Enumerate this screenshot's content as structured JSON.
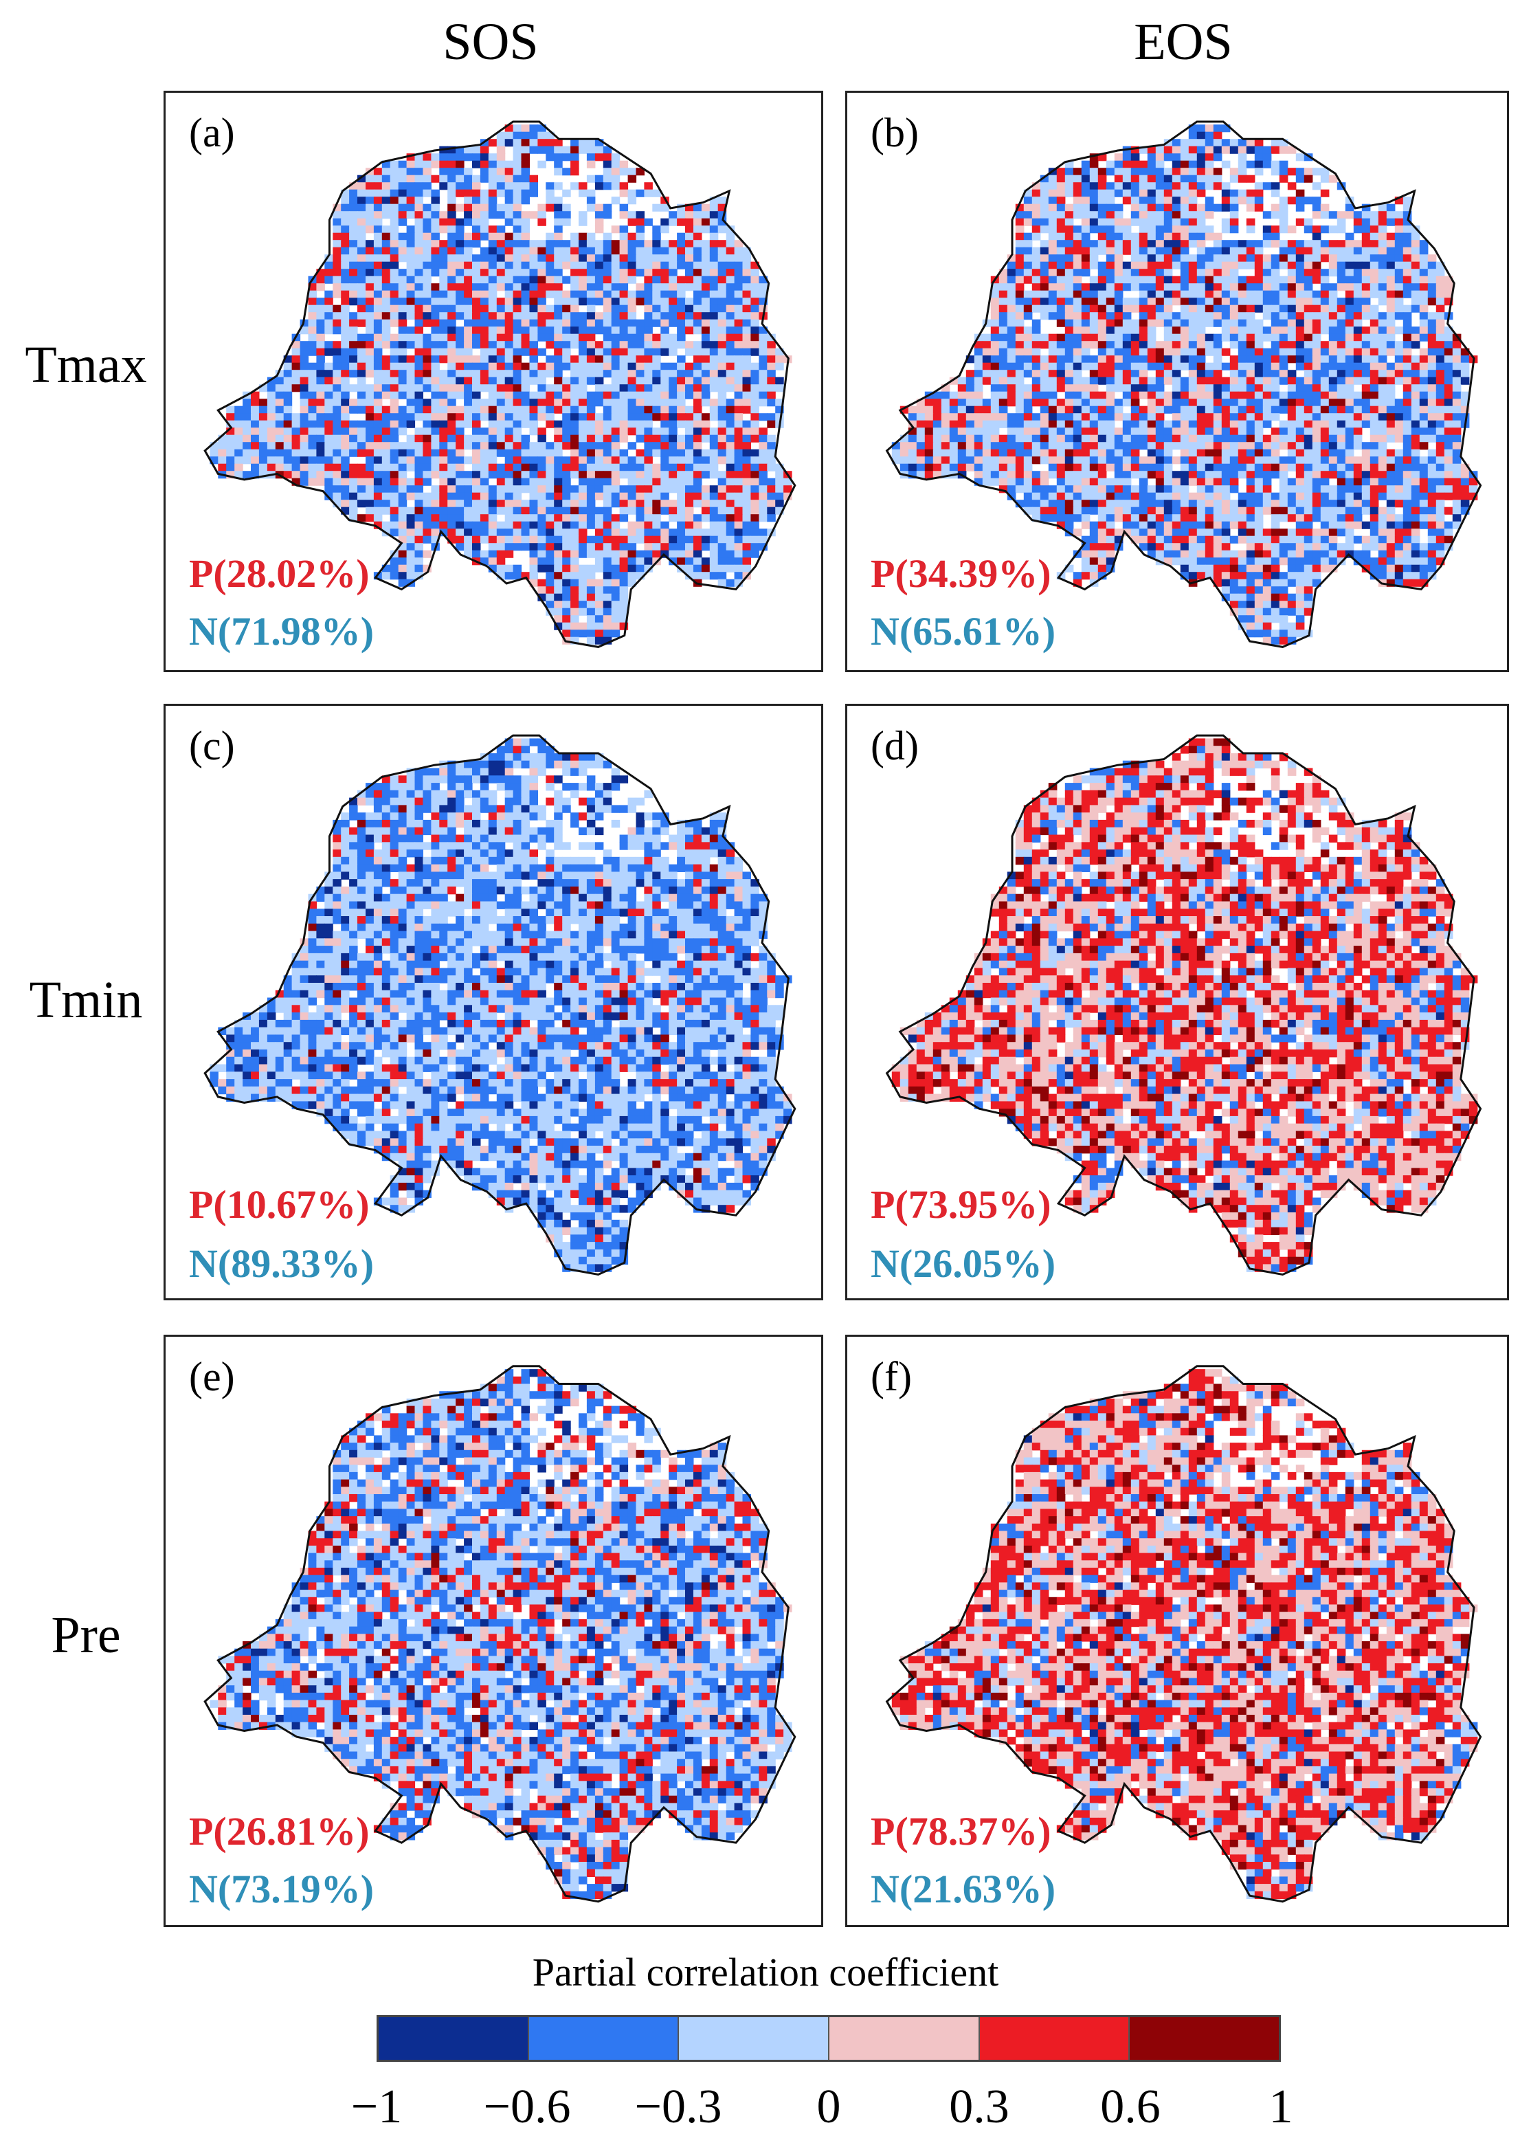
{
  "chart_data": {
    "type": "heatmap",
    "title": "Partial correlation coefficient maps",
    "columns": [
      "SOS",
      "EOS"
    ],
    "rows": [
      "Tmax",
      "Tmin",
      "Pre"
    ],
    "panels": [
      {
        "label": "(a)",
        "row": "Tmax",
        "column": "SOS",
        "positive": "P(28.02%)",
        "negative": "N(71.98%)",
        "positive_pct": 28.02,
        "negative_pct": 71.98
      },
      {
        "label": "(b)",
        "row": "Tmax",
        "column": "EOS",
        "positive": "P(34.39%)",
        "negative": "N(65.61%)",
        "positive_pct": 34.39,
        "negative_pct": 65.61
      },
      {
        "label": "(c)",
        "row": "Tmin",
        "column": "SOS",
        "positive": "P(10.67%)",
        "negative": "N(89.33%)",
        "positive_pct": 10.67,
        "negative_pct": 89.33
      },
      {
        "label": "(d)",
        "row": "Tmin",
        "column": "EOS",
        "positive": "P(73.95%)",
        "negative": "N(26.05%)",
        "positive_pct": 73.95,
        "negative_pct": 26.05
      },
      {
        "label": "(e)",
        "row": "Pre",
        "column": "SOS",
        "positive": "P(26.81%)",
        "negative": "N(73.19%)",
        "positive_pct": 26.81,
        "negative_pct": 73.19
      },
      {
        "label": "(f)",
        "row": "Pre",
        "column": "EOS",
        "positive": "P(78.37%)",
        "negative": "N(21.63%)",
        "positive_pct": 78.37,
        "negative_pct": 21.63
      }
    ],
    "colorbar": {
      "title": "Partial correlation coefficient",
      "ticks": [
        "−1",
        "−0.6",
        "−0.3",
        "0",
        "0.3",
        "0.6",
        "1"
      ],
      "bounds": [
        -1,
        -0.6,
        -0.3,
        0,
        0.3,
        0.6,
        1
      ],
      "colors": [
        "#0c2d91",
        "#2f78f2",
        "#b4d4ff",
        "#f2c4c6",
        "#ec1c24",
        "#8e0306"
      ]
    }
  }
}
